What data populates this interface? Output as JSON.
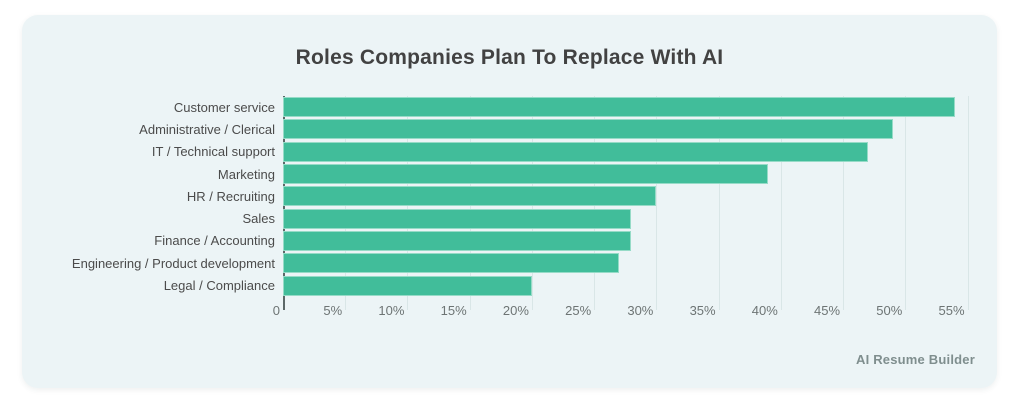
{
  "header": {
    "title": "Roles Companies Plan To Replace With AI"
  },
  "footer": {
    "source_label": "AI Resume Builder"
  },
  "colors": {
    "card_background": "#ecf4f6",
    "bar": "#41bd9a",
    "axis_line": "#5c6868",
    "gridline": "#d9e6e7",
    "title_text": "#424242",
    "category_text": "#4b4b4b",
    "tick_text": "#6d7474",
    "source_text": "#7f8e8e"
  },
  "chart_data": {
    "type": "bar",
    "orientation": "horizontal",
    "title": "Roles Companies Plan To Replace With AI",
    "categories": [
      "Customer service",
      "Administrative / Clerical",
      "IT / Technical support",
      "Marketing",
      "HR / Recruiting",
      "Sales",
      "Finance / Accounting",
      "Engineering / Product development",
      "Legal / Compliance"
    ],
    "values": [
      54,
      49,
      47,
      39,
      30,
      28,
      28,
      27,
      20
    ],
    "unit": "%",
    "x_ticks": [
      "0",
      "5%",
      "10%",
      "15%",
      "20%",
      "25%",
      "30%",
      "35%",
      "40%",
      "45%",
      "50%",
      "55%"
    ],
    "x_tick_values": [
      0,
      5,
      10,
      15,
      20,
      25,
      30,
      35,
      40,
      45,
      50,
      55
    ],
    "xlim": [
      0,
      55.6
    ],
    "xlabel": "",
    "ylabel": "",
    "grid": true,
    "legend": false
  }
}
